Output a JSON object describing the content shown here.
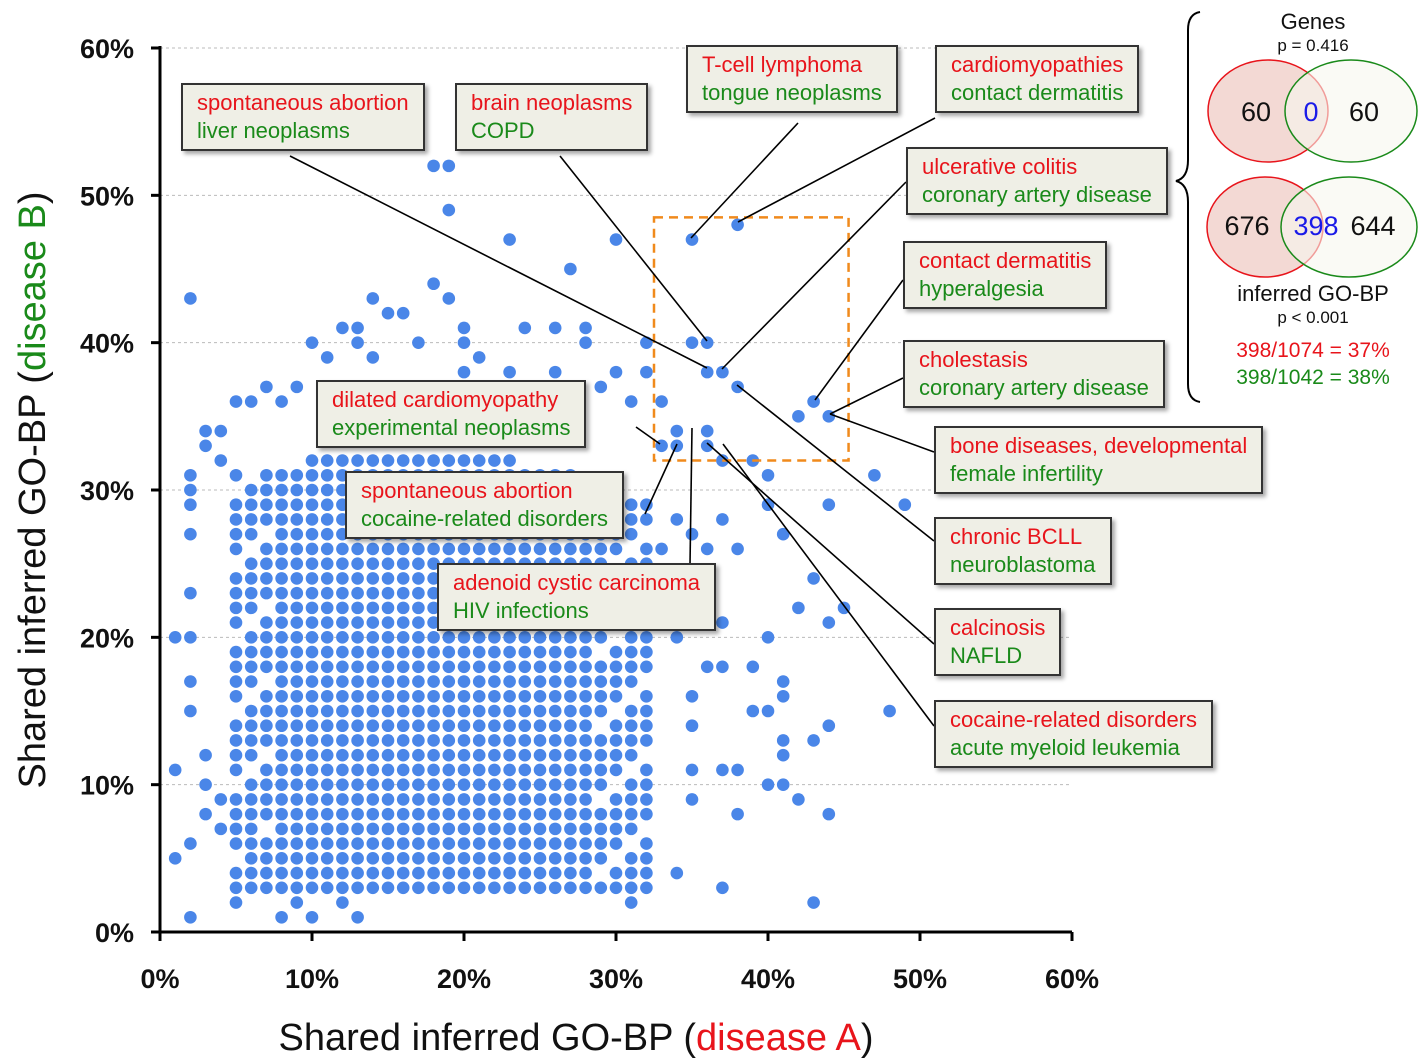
{
  "chart_data": {
    "type": "scatter",
    "xlabel": {
      "prefix": "Shared inferred GO-BP (",
      "highlight": "disease A",
      "suffix": ")"
    },
    "ylabel": {
      "prefix": "Shared inferred GO-BP (",
      "highlight": "disease B",
      "suffix": ")"
    },
    "xlim": [
      0,
      60
    ],
    "ylim": [
      0,
      60
    ],
    "xticks": [
      "0%",
      "10%",
      "20%",
      "30%",
      "40%",
      "50%",
      "60%"
    ],
    "yticks": [
      "0%",
      "10%",
      "20%",
      "30%",
      "40%",
      "50%",
      "60%"
    ],
    "grid": "horizontal dashed",
    "highlight_box": {
      "x": [
        32.5,
        45.3
      ],
      "y": [
        32.0,
        48.5
      ]
    },
    "dense_region": {
      "x": [
        5,
        32
      ],
      "y": [
        3,
        32
      ]
    },
    "points": [
      [
        18,
        52
      ],
      [
        19,
        52
      ],
      [
        19,
        49
      ],
      [
        23,
        47
      ],
      [
        30,
        47
      ],
      [
        35,
        47
      ],
      [
        38,
        48
      ],
      [
        27,
        45
      ],
      [
        2,
        43
      ],
      [
        14,
        43
      ],
      [
        18,
        44
      ],
      [
        19,
        43
      ],
      [
        16,
        42
      ],
      [
        36,
        40
      ],
      [
        37,
        38
      ],
      [
        36,
        38
      ],
      [
        38,
        37
      ],
      [
        43,
        36
      ],
      [
        42,
        35
      ],
      [
        44,
        35
      ],
      [
        34,
        34
      ],
      [
        36,
        34
      ],
      [
        33,
        33
      ],
      [
        34,
        33
      ],
      [
        36,
        33
      ],
      [
        37,
        32
      ],
      [
        39,
        32
      ],
      [
        40,
        31
      ],
      [
        47,
        31
      ],
      [
        44,
        29
      ],
      [
        49,
        29
      ],
      [
        40,
        29
      ],
      [
        41,
        27
      ],
      [
        42,
        22
      ],
      [
        45,
        22
      ],
      [
        43,
        24
      ],
      [
        44,
        21
      ],
      [
        44,
        14
      ],
      [
        43,
        13
      ],
      [
        48,
        15
      ],
      [
        44,
        8
      ],
      [
        43,
        2
      ],
      [
        42,
        9
      ],
      [
        41,
        10
      ],
      [
        40,
        10
      ],
      [
        41,
        12
      ],
      [
        41,
        13
      ],
      [
        41,
        16
      ],
      [
        41,
        17
      ],
      [
        40,
        15
      ],
      [
        39,
        15
      ],
      [
        37,
        3
      ],
      [
        38,
        8
      ],
      [
        38,
        11
      ],
      [
        37,
        11
      ],
      [
        35,
        11
      ],
      [
        35,
        9
      ],
      [
        34,
        4
      ],
      [
        31,
        2
      ],
      [
        30,
        3
      ],
      [
        29,
        5
      ],
      [
        2,
        1
      ],
      [
        8,
        1
      ],
      [
        10,
        1
      ],
      [
        13,
        1
      ],
      [
        5,
        2
      ],
      [
        7,
        37
      ],
      [
        3,
        34
      ],
      [
        2,
        31
      ],
      [
        9,
        37
      ],
      [
        1,
        20
      ],
      [
        1,
        11
      ],
      [
        1,
        5
      ],
      [
        35,
        40
      ],
      [
        32,
        40
      ],
      [
        33,
        36
      ],
      [
        31,
        36
      ],
      [
        39,
        18
      ],
      [
        40,
        20
      ],
      [
        37,
        21
      ],
      [
        37,
        18
      ],
      [
        36,
        18
      ],
      [
        35,
        14
      ],
      [
        35,
        16
      ],
      [
        34,
        20
      ],
      [
        36,
        26
      ],
      [
        35,
        27
      ],
      [
        37,
        28
      ],
      [
        38,
        26
      ],
      [
        34,
        28
      ],
      [
        33,
        26
      ],
      [
        33,
        24
      ],
      [
        31,
        20
      ],
      [
        29,
        26
      ],
      [
        30,
        24
      ],
      [
        11,
        39
      ],
      [
        12,
        41
      ],
      [
        13,
        40
      ],
      [
        14,
        39
      ],
      [
        15,
        42
      ],
      [
        17,
        40
      ],
      [
        20,
        40
      ],
      [
        20,
        38
      ],
      [
        24,
        41
      ],
      [
        26,
        41
      ],
      [
        28,
        41
      ],
      [
        28,
        40
      ],
      [
        23,
        38
      ],
      [
        26,
        38
      ],
      [
        30,
        38
      ],
      [
        32,
        38
      ],
      [
        31,
        36
      ],
      [
        29,
        37
      ],
      [
        25,
        37
      ],
      [
        22,
        37
      ],
      [
        21,
        39
      ],
      [
        20,
        41
      ],
      [
        13,
        41
      ],
      [
        10,
        40
      ],
      [
        8,
        36
      ],
      [
        6,
        36
      ],
      [
        5,
        36
      ],
      [
        4,
        34
      ],
      [
        4,
        32
      ],
      [
        5,
        31
      ],
      [
        3,
        33
      ],
      [
        2,
        30
      ],
      [
        2,
        29
      ],
      [
        2,
        27
      ],
      [
        2,
        23
      ],
      [
        2,
        20
      ],
      [
        2,
        17
      ],
      [
        2,
        15
      ],
      [
        3,
        12
      ],
      [
        3,
        10
      ],
      [
        3,
        8
      ],
      [
        2,
        6
      ],
      [
        4,
        7
      ],
      [
        4,
        9
      ],
      [
        6,
        6
      ],
      [
        6,
        4
      ],
      [
        7,
        3
      ],
      [
        9,
        2
      ],
      [
        11,
        3
      ],
      [
        12,
        2
      ],
      [
        14,
        4
      ],
      [
        16,
        4
      ],
      [
        17,
        6
      ],
      [
        19,
        3
      ],
      [
        21,
        4
      ],
      [
        23,
        4
      ],
      [
        25,
        3
      ],
      [
        26,
        5
      ],
      [
        28,
        3
      ],
      [
        31,
        4
      ],
      [
        27,
        8
      ],
      [
        28,
        9
      ],
      [
        24,
        10
      ],
      [
        22,
        12
      ],
      [
        21,
        8
      ],
      [
        19,
        7
      ],
      [
        17,
        10
      ],
      [
        15,
        8
      ]
    ]
  },
  "callouts": [
    {
      "a": "spontaneous abortion",
      "b": "liver neoplasms"
    },
    {
      "a": "brain neoplasms",
      "b": "COPD"
    },
    {
      "a": "T-cell lymphoma",
      "b": "tongue neoplasms"
    },
    {
      "a": "cardiomyopathies",
      "b": "contact dermatitis"
    },
    {
      "a": "ulcerative colitis",
      "b": "coronary artery disease"
    },
    {
      "a": "contact dermatitis",
      "b": "hyperalgesia"
    },
    {
      "a": "cholestasis",
      "b": "coronary artery disease"
    },
    {
      "a": "bone diseases, developmental",
      "b": "female infertility"
    },
    {
      "a": "chronic BCLL",
      "b": "neuroblastoma"
    },
    {
      "a": "calcinosis",
      "b": "NAFLD"
    },
    {
      "a": "cocaine-related disorders",
      "b": "acute myeloid leukemia"
    },
    {
      "a": "dilated cardiomyopathy",
      "b": "experimental neoplasms"
    },
    {
      "a": "spontaneous abortion",
      "b": "cocaine-related disorders"
    },
    {
      "a": "adenoid cystic carcinoma",
      "b": "HIV infections"
    }
  ],
  "venn": {
    "genes": {
      "title": "Genes",
      "p": "p = 0.416",
      "left": "60",
      "overlap": "0",
      "right": "60"
    },
    "gobp": {
      "title": "inferred GO-BP",
      "p": "p < 0.001",
      "left": "676",
      "overlap": "398",
      "right": "644",
      "ratio_a": "398/1074 = 37%",
      "ratio_b": "398/1042 = 38%"
    }
  },
  "colors": {
    "point": "#4a86e8",
    "disease_a": "#e8141b",
    "disease_b": "#1a8a1a",
    "overlap_text": "#1a1ae8",
    "box": "#f08a1c",
    "callout_bg": "#efefe6"
  }
}
